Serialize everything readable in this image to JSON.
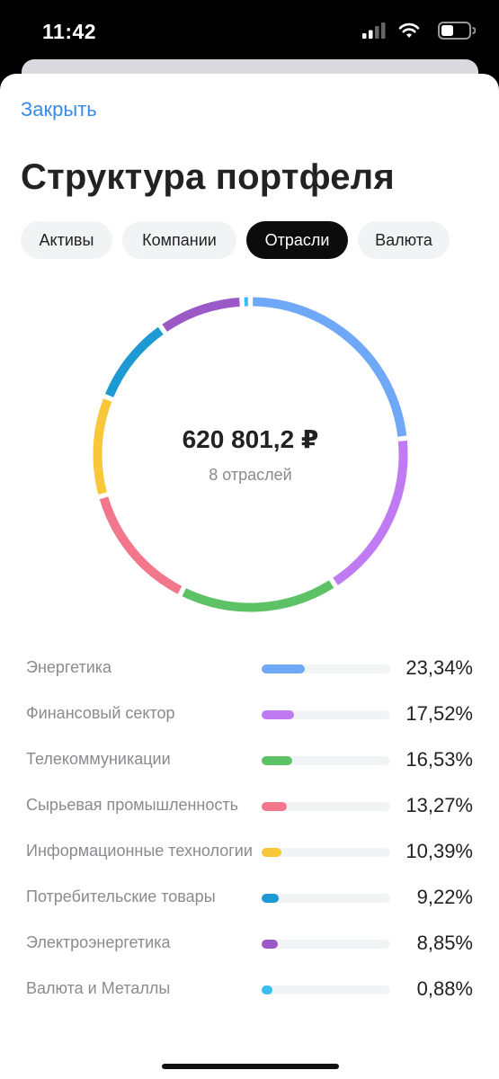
{
  "status_bar": {
    "time": "11:42"
  },
  "header": {
    "close_label": "Закрыть",
    "title": "Структура портфеля"
  },
  "tabs": [
    {
      "label": "Активы",
      "active": false
    },
    {
      "label": "Компании",
      "active": false
    },
    {
      "label": "Отрасли",
      "active": true
    },
    {
      "label": "Валюта",
      "active": false
    }
  ],
  "chart_data": {
    "type": "pie",
    "title": "",
    "center_value": "620 801,2 ₽",
    "center_caption": "8 отраслей",
    "series": [
      {
        "name": "Энергетика",
        "value": 23.34,
        "label": "23,34%",
        "color": "#6ea8f7"
      },
      {
        "name": "Финансовый сектор",
        "value": 17.52,
        "label": "17,52%",
        "color": "#c17bf2"
      },
      {
        "name": "Телекоммуникации",
        "value": 16.53,
        "label": "16,53%",
        "color": "#5dc265"
      },
      {
        "name": "Сырьевая промышленность",
        "value": 13.27,
        "label": "13,27%",
        "color": "#f3778c"
      },
      {
        "name": "Информационные технологии",
        "value": 10.39,
        "label": "10,39%",
        "color": "#f8c83a"
      },
      {
        "name": "Потребительские товары",
        "value": 9.22,
        "label": "9,22%",
        "color": "#1d9ad3"
      },
      {
        "name": "Электроэнергетика",
        "value": 8.85,
        "label": "8,85%",
        "color": "#9b59c8"
      },
      {
        "name": "Валюта и Металлы",
        "value": 0.88,
        "label": "0,88%",
        "color": "#38bdf0"
      }
    ]
  }
}
